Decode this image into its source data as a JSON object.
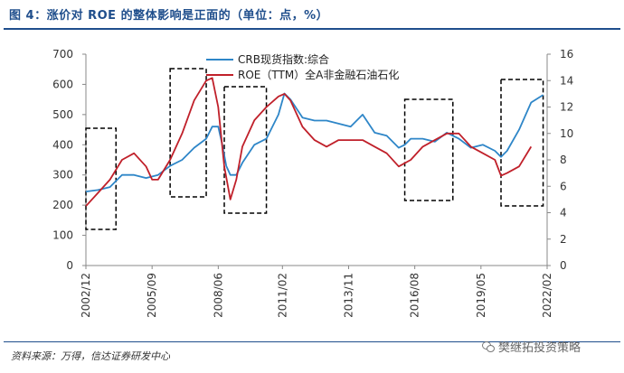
{
  "figure": {
    "title": "图 4：涨价对 ROE 的整体影响是正面的（单位：点，%）",
    "source": "资料来源：万得，信达证券研发中心",
    "watermark": "樊继拓投资策略"
  },
  "chart_data": {
    "type": "line",
    "title": "图 4：涨价对 ROE 的整体影响是正面的（单位：点，%）",
    "x_ticks": [
      "2002/12",
      "2005/09",
      "2008/06",
      "2011/02",
      "2013/11",
      "2016/08",
      "2019/05",
      "2022/02"
    ],
    "x_range": [
      "2002/12",
      "2021/12"
    ],
    "left_axis": {
      "ylim": [
        0,
        700
      ],
      "ticks": [
        0,
        100,
        200,
        300,
        400,
        500,
        600,
        700
      ]
    },
    "right_axis": {
      "ylim": [
        0,
        16
      ],
      "ticks": [
        0,
        2,
        4,
        6,
        8,
        10,
        12,
        14,
        16
      ]
    },
    "grid": false,
    "legend_position": "top",
    "colors": {
      "crb": "#2e86c8",
      "roe": "#c0202a",
      "box": "#000000"
    },
    "series": [
      {
        "name": "CRB现货指数:综合",
        "axis": "left",
        "color": "#2e86c8",
        "x": [
          "2002/12",
          "2003/06",
          "2003/12",
          "2004/06",
          "2004/12",
          "2005/06",
          "2005/12",
          "2006/06",
          "2006/12",
          "2007/06",
          "2007/12",
          "2008/03",
          "2008/06",
          "2008/08",
          "2008/10",
          "2008/12",
          "2009/03",
          "2009/06",
          "2009/12",
          "2010/06",
          "2010/12",
          "2011/03",
          "2011/06",
          "2011/12",
          "2012/06",
          "2012/12",
          "2013/06",
          "2013/12",
          "2014/06",
          "2014/12",
          "2015/06",
          "2015/12",
          "2016/03",
          "2016/06",
          "2016/12",
          "2017/06",
          "2017/12",
          "2018/06",
          "2018/12",
          "2019/06",
          "2019/12",
          "2020/03",
          "2020/06",
          "2020/12",
          "2021/06",
          "2021/12"
        ],
        "values": [
          245,
          250,
          260,
          300,
          300,
          290,
          300,
          330,
          350,
          390,
          420,
          460,
          460,
          400,
          330,
          300,
          300,
          340,
          400,
          420,
          500,
          570,
          550,
          490,
          480,
          480,
          470,
          460,
          500,
          440,
          430,
          390,
          400,
          420,
          420,
          410,
          440,
          420,
          390,
          400,
          380,
          360,
          380,
          450,
          540,
          565
        ]
      },
      {
        "name": "ROE（TTM）全A非金融石油石化",
        "axis": "right",
        "color": "#c0202a",
        "x": [
          "2002/12",
          "2003/06",
          "2003/12",
          "2004/06",
          "2004/12",
          "2005/06",
          "2005/09",
          "2005/12",
          "2006/06",
          "2006/12",
          "2007/06",
          "2007/12",
          "2008/03",
          "2008/06",
          "2008/09",
          "2008/12",
          "2009/03",
          "2009/06",
          "2009/12",
          "2010/06",
          "2010/12",
          "2011/03",
          "2011/06",
          "2011/12",
          "2012/06",
          "2012/12",
          "2013/06",
          "2013/12",
          "2014/06",
          "2014/12",
          "2015/06",
          "2015/12",
          "2016/06",
          "2016/12",
          "2017/06",
          "2017/12",
          "2018/06",
          "2018/12",
          "2019/06",
          "2019/12",
          "2020/03",
          "2020/06",
          "2020/12",
          "2021/06"
        ],
        "values": [
          4.5,
          5.5,
          6.5,
          8.0,
          8.5,
          7.5,
          6.5,
          6.5,
          8.0,
          10.0,
          12.5,
          14.0,
          14.2,
          12.0,
          7.5,
          5.0,
          6.5,
          9.0,
          11.0,
          12.0,
          12.8,
          13.0,
          12.5,
          10.5,
          9.5,
          9.0,
          9.5,
          9.5,
          9.5,
          9.0,
          8.5,
          7.5,
          8.0,
          9.0,
          9.5,
          10.0,
          10.0,
          9.0,
          8.5,
          8.0,
          6.8,
          7.0,
          7.5,
          9.0
        ]
      }
    ],
    "highlight_periods": [
      [
        "2002/12",
        "2004/03"
      ],
      [
        "2006/06",
        "2007/12"
      ],
      [
        "2008/09",
        "2010/06"
      ],
      [
        "2016/03",
        "2018/03"
      ],
      [
        "2020/03",
        "2021/12"
      ]
    ]
  }
}
